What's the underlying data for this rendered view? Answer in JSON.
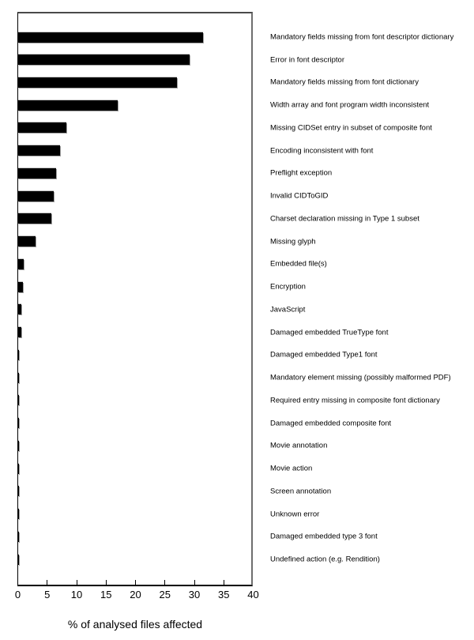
{
  "chart_data": {
    "type": "bar",
    "orientation": "horizontal",
    "title": "",
    "xlabel": "% of analysed files affected",
    "ylabel": "",
    "xlim": [
      0,
      40
    ],
    "x_ticks": [
      0,
      5,
      10,
      15,
      20,
      25,
      30,
      35,
      40
    ],
    "grid": false,
    "legend": false,
    "bar_color": "#000000",
    "categories": [
      "Mandatory fields missing from font descriptor dictionary",
      "Error in font descriptor",
      "Mandatory fields missing from font dictionary",
      "Width array and font program width inconsistent",
      "Missing CIDSet entry in subset of composite font",
      "Encoding inconsistent with font",
      "Preflight exception",
      "Invalid CIDToGID",
      "Charset declaration missing in Type 1 subset",
      "Missing glyph",
      "Embedded file(s)",
      "Encryption",
      "JavaScript",
      "Damaged embedded TrueType font",
      "Damaged embedded Type1 font",
      "Mandatory element missing (possibly malformed PDF)",
      "Required entry missing in composite font dictionary",
      "Damaged embedded composite font",
      "Movie annotation",
      "Movie action",
      "Screen annotation",
      "Unknown error",
      "Damaged embedded type 3 font",
      "Undefined action (e.g. Rendition)"
    ],
    "values": [
      31.4,
      29.1,
      27.0,
      16.9,
      8.2,
      7.1,
      6.4,
      6.0,
      5.6,
      3.0,
      0.9,
      0.85,
      0.5,
      0.5,
      0.15,
      0.15,
      0.1,
      0.1,
      0.05,
      0.05,
      0.05,
      0.05,
      0.05,
      0.05
    ]
  },
  "colors": {
    "background": "#ffffff",
    "bar": "#000000",
    "bar_shadow": "#a0a0a0",
    "axis": "#000000",
    "frame_top": "#4a4a4a",
    "frame_right": "#6e6e6e",
    "text": "#000000"
  }
}
